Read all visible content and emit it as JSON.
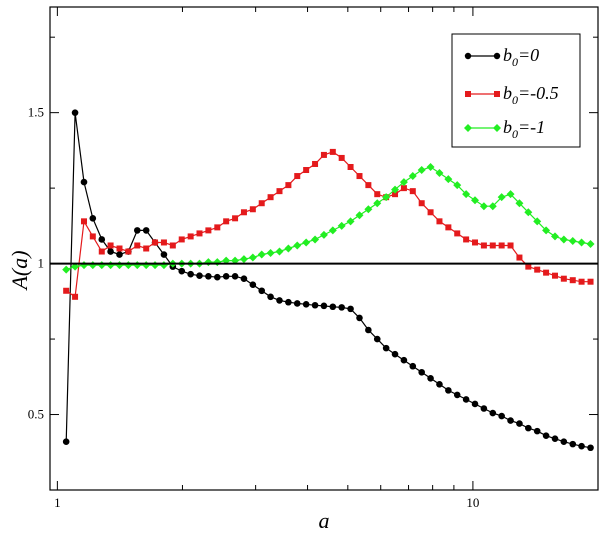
{
  "chart_data": {
    "type": "line",
    "title": "",
    "xlabel": "a",
    "ylabel": "A(a)",
    "xscale": "log",
    "xlim": [
      0.96,
      20
    ],
    "ylim": [
      0.25,
      1.85
    ],
    "xticks": [
      1,
      10
    ],
    "xtick_labels": [
      "1",
      "10"
    ],
    "yticks": [
      0.5,
      1,
      1.5
    ],
    "ytick_labels": [
      "0.5",
      "1",
      "1.5"
    ],
    "grid": false,
    "legend_position": "top-right",
    "reference_line": {
      "y": 1,
      "color": "#000000"
    },
    "x": [
      1.05,
      1.103,
      1.159,
      1.217,
      1.279,
      1.343,
      1.411,
      1.482,
      1.557,
      1.636,
      1.718,
      1.805,
      1.896,
      1.992,
      2.093,
      2.198,
      2.309,
      2.426,
      2.548,
      2.677,
      2.812,
      2.954,
      3.103,
      3.259,
      3.424,
      3.597,
      3.778,
      3.969,
      4.17,
      4.38,
      4.601,
      4.833,
      5.077,
      5.334,
      5.603,
      5.886,
      6.183,
      6.495,
      6.823,
      7.167,
      7.529,
      7.909,
      8.308,
      8.728,
      9.168,
      9.631,
      10.117,
      10.628,
      11.164,
      11.727,
      12.319,
      12.941,
      13.594,
      14.28,
      15.0,
      15.76,
      16.55,
      17.39,
      18.26,
      19.19
    ],
    "series": [
      {
        "name": "b_0=0",
        "legend_label": "=0",
        "color": "#000000",
        "marker": "circle",
        "values": [
          0.41,
          1.5,
          1.27,
          1.15,
          1.08,
          1.04,
          1.03,
          1.04,
          1.11,
          1.11,
          1.07,
          1.03,
          0.99,
          0.975,
          0.965,
          0.96,
          0.958,
          0.955,
          0.958,
          0.958,
          0.95,
          0.93,
          0.91,
          0.89,
          0.878,
          0.872,
          0.868,
          0.865,
          0.862,
          0.86,
          0.857,
          0.855,
          0.85,
          0.82,
          0.78,
          0.75,
          0.72,
          0.7,
          0.68,
          0.66,
          0.64,
          0.62,
          0.6,
          0.58,
          0.565,
          0.55,
          0.535,
          0.52,
          0.505,
          0.495,
          0.48,
          0.47,
          0.455,
          0.445,
          0.43,
          0.42,
          0.41,
          0.402,
          0.395,
          0.39
        ]
      },
      {
        "name": "b_0=-0.5",
        "legend_label": "=-0.5",
        "color": "#e41a1c",
        "marker": "square",
        "values": [
          0.91,
          0.89,
          1.14,
          1.09,
          1.04,
          1.06,
          1.05,
          1.04,
          1.06,
          1.05,
          1.07,
          1.07,
          1.06,
          1.08,
          1.09,
          1.1,
          1.11,
          1.12,
          1.14,
          1.15,
          1.17,
          1.18,
          1.2,
          1.22,
          1.24,
          1.26,
          1.29,
          1.31,
          1.33,
          1.36,
          1.37,
          1.35,
          1.32,
          1.29,
          1.26,
          1.23,
          1.22,
          1.23,
          1.25,
          1.24,
          1.2,
          1.17,
          1.14,
          1.12,
          1.1,
          1.08,
          1.07,
          1.06,
          1.06,
          1.06,
          1.06,
          1.02,
          0.99,
          0.98,
          0.97,
          0.96,
          0.95,
          0.945,
          0.94,
          0.94
        ]
      },
      {
        "name": "b_0=-1",
        "legend_label": "=-1",
        "color": "#22ee22",
        "marker": "diamond",
        "values": [
          0.98,
          0.99,
          0.995,
          0.995,
          0.995,
          0.995,
          0.995,
          0.995,
          0.995,
          0.995,
          0.995,
          0.995,
          1.0,
          1.0,
          1.0,
          1.0,
          1.005,
          1.005,
          1.01,
          1.01,
          1.015,
          1.02,
          1.03,
          1.035,
          1.04,
          1.05,
          1.06,
          1.07,
          1.08,
          1.095,
          1.11,
          1.125,
          1.14,
          1.16,
          1.18,
          1.2,
          1.22,
          1.245,
          1.27,
          1.29,
          1.31,
          1.32,
          1.3,
          1.28,
          1.26,
          1.23,
          1.21,
          1.19,
          1.19,
          1.22,
          1.23,
          1.2,
          1.17,
          1.14,
          1.11,
          1.09,
          1.08,
          1.075,
          1.07,
          1.065
        ]
      }
    ]
  }
}
